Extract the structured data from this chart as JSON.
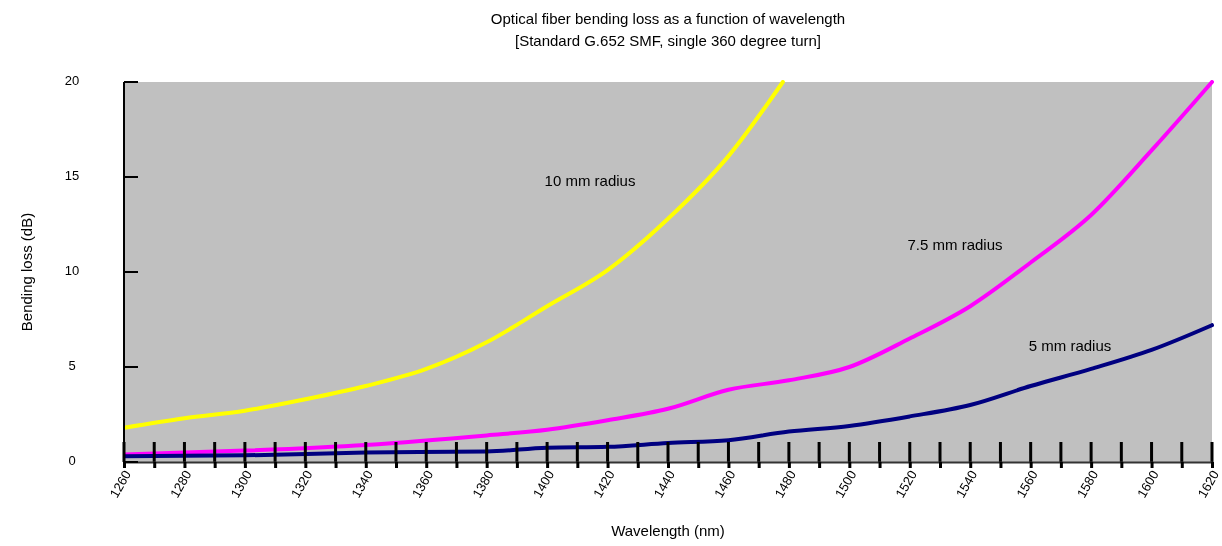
{
  "chart_data": {
    "type": "line",
    "title": "Optical fiber bending loss as a function of wavelength",
    "subtitle": "[Standard G.652 SMF, single 360 degree turn]",
    "xlabel": "Wavelength (nm)",
    "ylabel": "Bending loss (dB)",
    "xlim": [
      1260,
      1620
    ],
    "ylim": [
      0,
      20
    ],
    "yticks": [
      0,
      5,
      10,
      15,
      20
    ],
    "xticks": [
      1260,
      {
        "value": 1270,
        "label": null
      },
      1280,
      {
        "value": 1290,
        "label": null
      },
      1300,
      {
        "value": 1310,
        "label": null
      },
      1320,
      {
        "value": 1330,
        "label": null
      },
      1340,
      {
        "value": 1350,
        "label": null
      },
      1360,
      {
        "value": 1370,
        "label": null
      },
      1380,
      {
        "value": 1390,
        "label": null
      },
      1400,
      {
        "value": 1410,
        "label": null
      },
      1420,
      {
        "value": 1430,
        "label": null
      },
      1440,
      {
        "value": 1450,
        "label": null
      },
      1460,
      {
        "value": 1470,
        "label": null
      },
      1480,
      {
        "value": 1490,
        "label": null
      },
      1500,
      {
        "value": 1510,
        "label": null
      },
      1520,
      {
        "value": 1530,
        "label": null
      },
      1540,
      {
        "value": 1550,
        "label": null
      },
      1560,
      {
        "value": 1570,
        "label": null
      },
      1580,
      {
        "value": 1590,
        "label": null
      },
      1600,
      {
        "value": 1610,
        "label": null
      },
      1620
    ],
    "series": [
      {
        "name": "10 mm radius",
        "color": "#ffff00",
        "x": [
          1260,
          1280,
          1300,
          1320,
          1340,
          1360,
          1380,
          1400,
          1420,
          1440,
          1460,
          1478
        ],
        "values": [
          1.8,
          2.3,
          2.7,
          3.3,
          4.0,
          4.9,
          6.3,
          8.2,
          10.1,
          12.8,
          16.1,
          20
        ]
      },
      {
        "name": "7.5 mm radius",
        "color": "#ff00ff",
        "x": [
          1260,
          1300,
          1340,
          1380,
          1400,
          1420,
          1440,
          1460,
          1480,
          1500,
          1520,
          1540,
          1560,
          1580,
          1600,
          1620
        ],
        "values": [
          0.4,
          0.6,
          0.9,
          1.4,
          1.7,
          2.2,
          2.8,
          3.8,
          4.3,
          5.0,
          6.5,
          8.2,
          10.5,
          13.0,
          16.4,
          20
        ]
      },
      {
        "name": "5 mm radius",
        "color": "#000080",
        "x": [
          1260,
          1300,
          1340,
          1380,
          1400,
          1420,
          1440,
          1460,
          1480,
          1500,
          1520,
          1540,
          1560,
          1580,
          1600,
          1620
        ],
        "values": [
          0.3,
          0.35,
          0.5,
          0.55,
          0.75,
          0.8,
          1.0,
          1.15,
          1.6,
          1.9,
          2.4,
          3.0,
          4.0,
          4.9,
          5.9,
          7.2
        ]
      }
    ],
    "grid": false,
    "marker": "none",
    "line_style": "solid"
  }
}
